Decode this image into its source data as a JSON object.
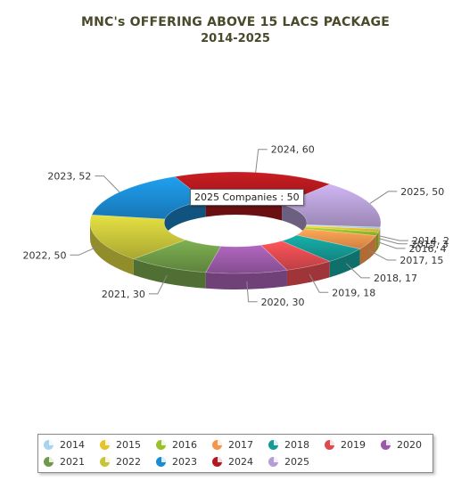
{
  "chart_data": {
    "type": "pie",
    "title": "MNC's OFFERING ABOVE 15 LACS PACKAGE",
    "subtitle": "2014-2025",
    "categories": [
      "2014",
      "2015",
      "2016",
      "2017",
      "2018",
      "2019",
      "2020",
      "2021",
      "2022",
      "2023",
      "2024",
      "2025"
    ],
    "values": [
      2,
      3,
      4,
      15,
      17,
      18,
      30,
      30,
      50,
      52,
      60,
      50
    ],
    "data_labels": [
      "2014, 2",
      "2015, 3",
      "2016, 4",
      "2017, 15",
      "2018, 17",
      "2019, 18",
      "2020, 30",
      "2021, 30",
      "2022, 50",
      "2023, 52",
      "2024, 60",
      "2025, 50"
    ],
    "colors": [
      "#a9d4f0",
      "#e8c22a",
      "#9bc12a",
      "#f5944b",
      "#159a95",
      "#dd4a4f",
      "#9b5aa8",
      "#6e9a47",
      "#c8c43a",
      "#1b8bd2",
      "#b0191e",
      "#b59ed4"
    ],
    "style": "3d-doughnut",
    "legend_position": "bottom"
  },
  "tooltip": {
    "text": "2025 Companies : 50"
  }
}
